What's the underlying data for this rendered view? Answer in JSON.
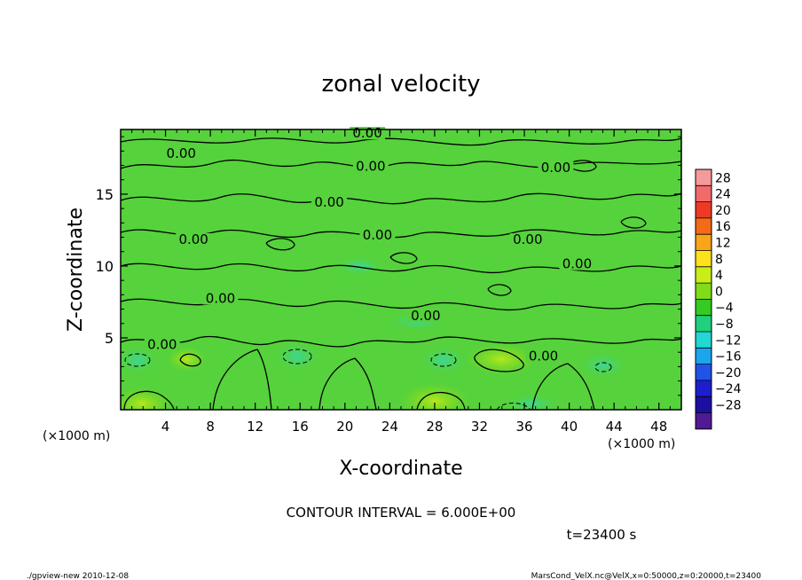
{
  "chart_data": {
    "type": "heatmap",
    "title": "zonal velocity",
    "xlabel": "X-coordinate",
    "ylabel": "Z-coordinate",
    "x_unit_left": "(×1000 m)",
    "x_unit_right": "(×1000 m)",
    "xlim": [
      0,
      50
    ],
    "ylim": [
      0,
      19.5
    ],
    "x_ticks": [
      4,
      8,
      12,
      16,
      20,
      24,
      28,
      32,
      36,
      40,
      44,
      48
    ],
    "y_ticks": [
      5,
      10,
      15
    ],
    "colorbar": {
      "levels": [
        28,
        24,
        20,
        16,
        12,
        8,
        4,
        0,
        -4,
        -8,
        -12,
        -16,
        -20,
        -24,
        -28
      ],
      "colors": [
        "#f59a9a",
        "#f26b6b",
        "#ee3a24",
        "#f56a16",
        "#f8a51a",
        "#fbe21a",
        "#c9ed19",
        "#7fdc16",
        "#34cb23",
        "#1fd17b",
        "#20d8d4",
        "#1ba5ee",
        "#2053e6",
        "#1e1ed0",
        "#1b0fa0",
        "#501a95"
      ]
    },
    "contour_labels": [
      {
        "text": "0.00",
        "x": 22.0,
        "z": 19.0
      },
      {
        "text": "0.00",
        "x": 5.4,
        "z": 17.6
      },
      {
        "text": "0.00",
        "x": 22.3,
        "z": 16.7
      },
      {
        "text": "0.00",
        "x": 38.8,
        "z": 16.6
      },
      {
        "text": "0.00",
        "x": 18.6,
        "z": 14.2
      },
      {
        "text": "0.00",
        "x": 6.5,
        "z": 11.6
      },
      {
        "text": "0.00",
        "x": 22.9,
        "z": 11.9
      },
      {
        "text": "0.00",
        "x": 36.3,
        "z": 11.6
      },
      {
        "text": "0.00",
        "x": 40.7,
        "z": 9.9
      },
      {
        "text": "0.00",
        "x": 8.9,
        "z": 7.5
      },
      {
        "text": "0.00",
        "x": 27.2,
        "z": 6.3
      },
      {
        "text": "0.00",
        "x": 3.7,
        "z": 4.3
      },
      {
        "text": "0.00",
        "x": 37.7,
        "z": 3.5
      }
    ],
    "contour_interval": "CONTOUR INTERVAL = 6.000E+00",
    "time": "t=23400 s"
  },
  "footer": {
    "left": "./gpview-new   2010-12-08",
    "right": "MarsCond_VelX.nc@VelX,x=0:50000,z=0:20000,t=23400"
  }
}
